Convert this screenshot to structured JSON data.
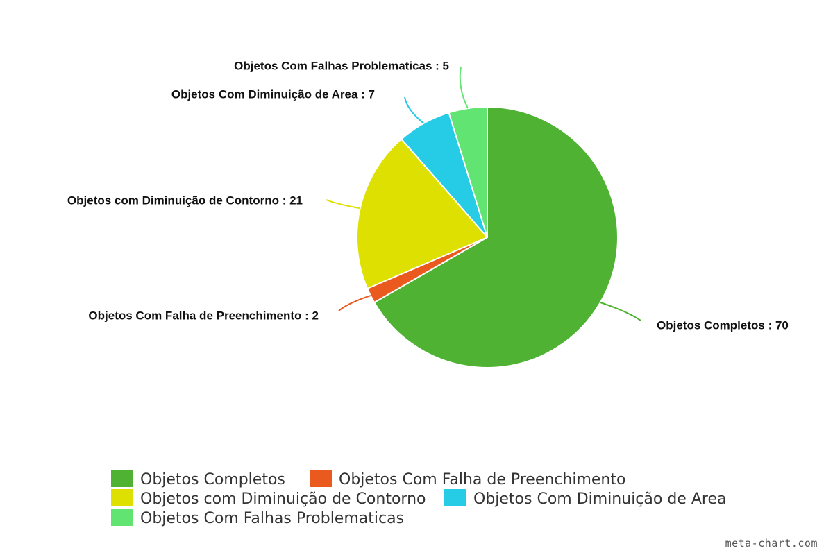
{
  "chart_data": {
    "type": "pie",
    "title": "",
    "series": [
      {
        "name": "Objetos Completos",
        "value": 70,
        "color": "#4fb233"
      },
      {
        "name": "Objetos Com Falha de Preenchimento",
        "value": 2,
        "color": "#ea5a1f"
      },
      {
        "name": "Objetos com Diminuição de Contorno",
        "value": 21,
        "color": "#dde000"
      },
      {
        "name": "Objetos Com Diminuição de Area",
        "value": 7,
        "color": "#26cbe6"
      },
      {
        "name": "Objetos Com Falhas Problematicas",
        "value": 5,
        "color": "#62e473"
      }
    ],
    "data_label_separator": " : ",
    "legend_position": "bottom",
    "start_angle": "12 o'clock",
    "direction": "clockwise"
  },
  "watermark": "meta-chart.com"
}
